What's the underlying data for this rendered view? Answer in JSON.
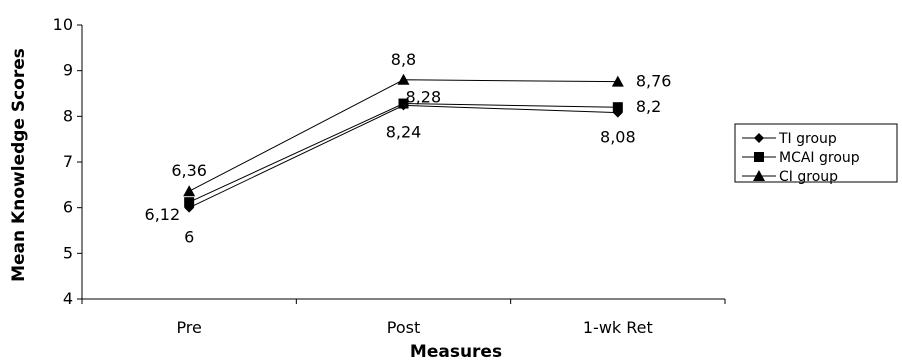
{
  "chart_data": {
    "type": "line",
    "categories": [
      "Pre",
      "Post",
      "1-wk Ret"
    ],
    "xlabel": "Measures",
    "ylabel": "Mean Knowledge Scores",
    "ylim": [
      4,
      10
    ],
    "yticks": [
      "4",
      "5",
      "6",
      "7",
      "8",
      "9",
      "10"
    ],
    "grid": false,
    "legend_position": "right",
    "series": [
      {
        "name": "TI group",
        "marker": "diamond",
        "values": [
          6,
          8.24,
          8.08
        ],
        "labels": [
          "6",
          "8,24",
          "8,08"
        ],
        "color": "#000000"
      },
      {
        "name": "MCAI group",
        "marker": "square",
        "values": [
          6.12,
          8.28,
          8.2
        ],
        "labels": [
          "6,12",
          "8,28",
          "8,2"
        ],
        "color": "#000000"
      },
      {
        "name": "CI group",
        "marker": "triangle",
        "values": [
          6.36,
          8.8,
          8.76
        ],
        "labels": [
          "6,36",
          "8,8",
          "8,76"
        ],
        "color": "#000000"
      }
    ]
  }
}
